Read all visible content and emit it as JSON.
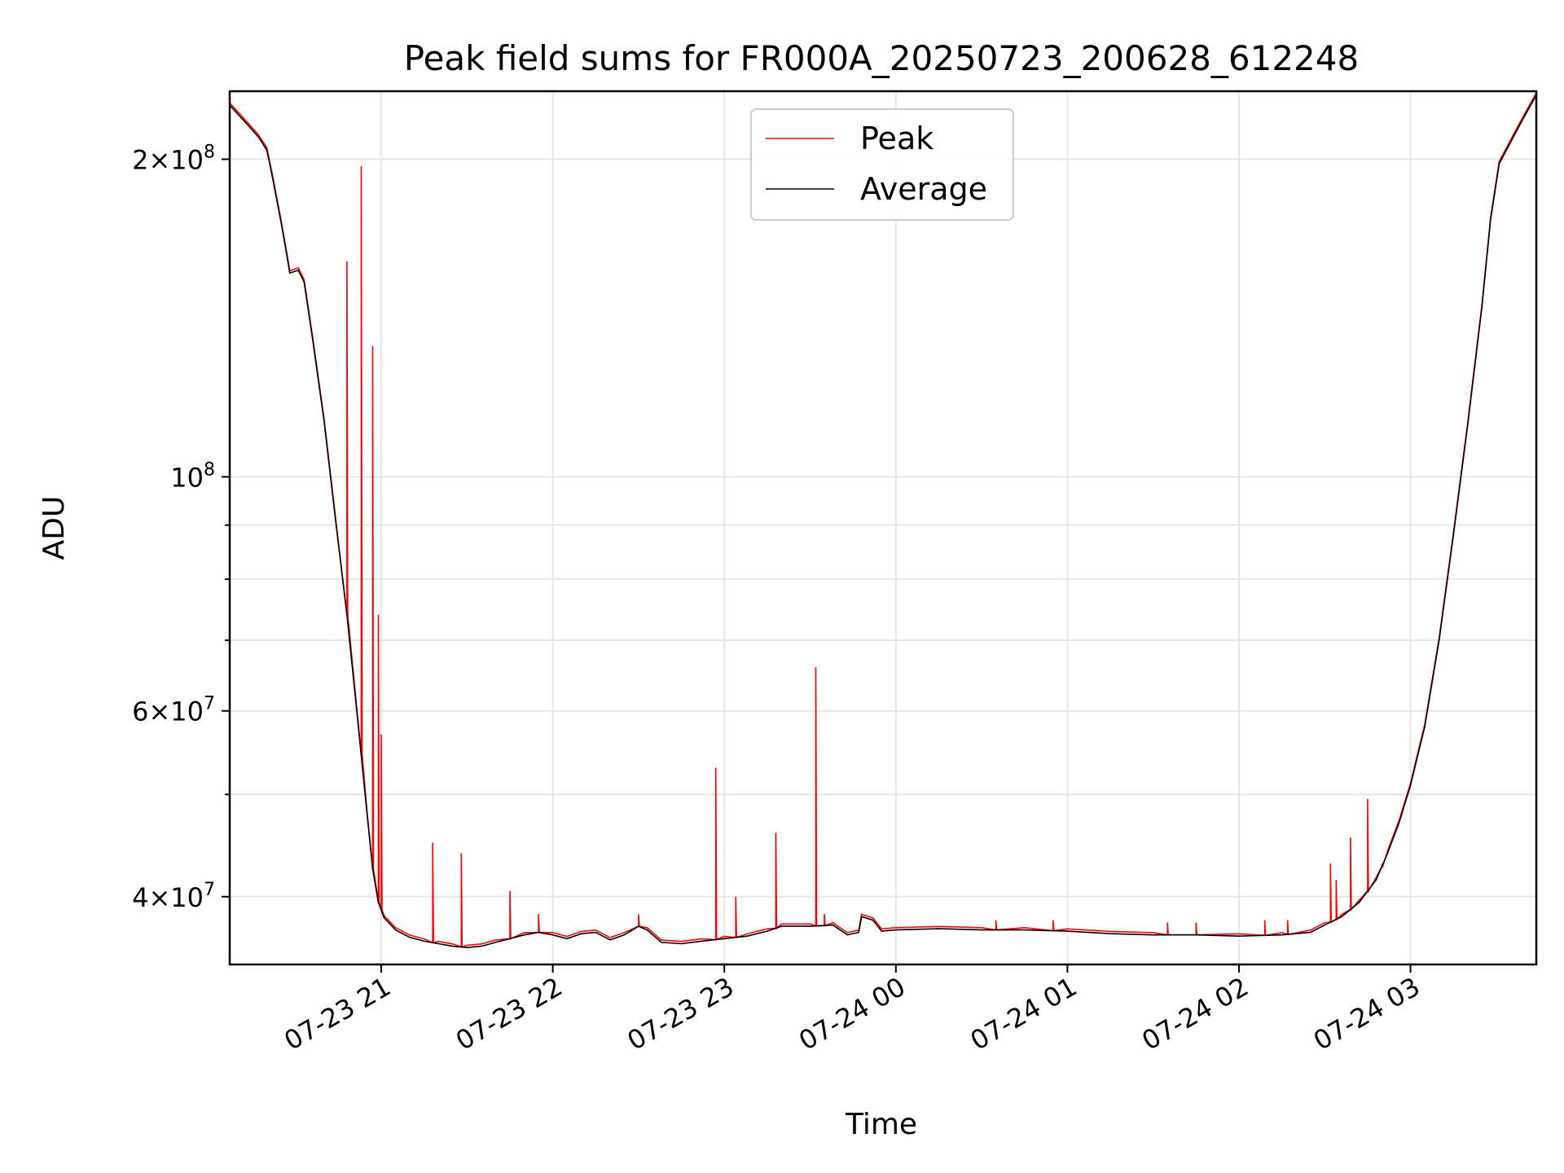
{
  "chart_data": {
    "type": "line",
    "title": "Peak field sums for FR000A_20250723_200628_612248",
    "xlabel": "Time",
    "ylabel": "ADU",
    "yscale": "log",
    "xlim": [
      "2025-07-23 20:07",
      "2025-07-24 03:44"
    ],
    "ylim": [
      34500000,
      232000000
    ],
    "grid": true,
    "legend_position": "upper-center",
    "x_ticks": [
      {
        "t": "2025-07-23 21:00",
        "label": "07-23 21"
      },
      {
        "t": "2025-07-23 22:00",
        "label": "07-23 22"
      },
      {
        "t": "2025-07-23 23:00",
        "label": "07-23 23"
      },
      {
        "t": "2025-07-24 00:00",
        "label": "07-24 00"
      },
      {
        "t": "2025-07-24 01:00",
        "label": "07-24 01"
      },
      {
        "t": "2025-07-24 02:00",
        "label": "07-24 02"
      },
      {
        "t": "2025-07-24 03:00",
        "label": "07-24 03"
      }
    ],
    "y_ticks_major": [
      {
        "value": 40000000,
        "mantissa": "4",
        "times": "×",
        "base": "10",
        "exp": "7"
      },
      {
        "value": 60000000,
        "mantissa": "6",
        "times": "×",
        "base": "10",
        "exp": "7"
      },
      {
        "value": 100000000,
        "mantissa": "",
        "times": "",
        "base": "10",
        "exp": "8"
      },
      {
        "value": 200000000,
        "mantissa": "2",
        "times": "×",
        "base": "10",
        "exp": "8"
      }
    ],
    "y_ticks_minor": [
      50000000,
      70000000,
      80000000,
      90000000
    ],
    "series": [
      {
        "name": "Average",
        "color": "#000000",
        "points": [
          [
            "2025-07-23 20:07",
            225000000
          ],
          [
            "2025-07-23 20:13",
            216000000
          ],
          [
            "2025-07-23 20:17",
            210000000
          ],
          [
            "2025-07-23 20:20",
            204000000
          ],
          [
            "2025-07-23 20:22",
            192000000
          ],
          [
            "2025-07-23 20:25",
            174000000
          ],
          [
            "2025-07-23 20:27",
            162000000
          ],
          [
            "2025-07-23 20:28",
            156000000
          ],
          [
            "2025-07-23 20:31",
            157000000
          ],
          [
            "2025-07-23 20:33",
            153000000
          ],
          [
            "2025-07-23 20:36",
            135000000
          ],
          [
            "2025-07-23 20:40",
            113000000
          ],
          [
            "2025-07-23 20:44",
            91000000
          ],
          [
            "2025-07-23 20:48",
            74000000
          ],
          [
            "2025-07-23 20:52",
            58000000
          ],
          [
            "2025-07-23 20:55",
            48000000
          ],
          [
            "2025-07-23 20:57",
            42500000
          ],
          [
            "2025-07-23 20:59",
            39500000
          ],
          [
            "2025-07-23 21:01",
            38200000
          ],
          [
            "2025-07-23 21:05",
            37200000
          ],
          [
            "2025-07-23 21:10",
            36600000
          ],
          [
            "2025-07-23 21:15",
            36300000
          ],
          [
            "2025-07-23 21:20",
            36100000
          ],
          [
            "2025-07-23 21:25",
            35900000
          ],
          [
            "2025-07-23 21:30",
            35800000
          ],
          [
            "2025-07-23 21:35",
            35900000
          ],
          [
            "2025-07-23 21:40",
            36200000
          ],
          [
            "2025-07-23 21:45",
            36500000
          ],
          [
            "2025-07-23 21:50",
            36800000
          ],
          [
            "2025-07-23 21:55",
            37000000
          ],
          [
            "2025-07-23 22:00",
            36800000
          ],
          [
            "2025-07-23 22:05",
            36500000
          ],
          [
            "2025-07-23 22:10",
            36900000
          ],
          [
            "2025-07-23 22:15",
            37000000
          ],
          [
            "2025-07-23 22:20",
            36400000
          ],
          [
            "2025-07-23 22:25",
            36800000
          ],
          [
            "2025-07-23 22:30",
            37500000
          ],
          [
            "2025-07-23 22:33",
            37200000
          ],
          [
            "2025-07-23 22:38",
            36200000
          ],
          [
            "2025-07-23 22:45",
            36100000
          ],
          [
            "2025-07-23 22:52",
            36300000
          ],
          [
            "2025-07-23 23:00",
            36500000
          ],
          [
            "2025-07-23 23:08",
            36700000
          ],
          [
            "2025-07-23 23:15",
            37100000
          ],
          [
            "2025-07-23 23:20",
            37500000
          ],
          [
            "2025-07-23 23:30",
            37500000
          ],
          [
            "2025-07-23 23:38",
            37600000
          ],
          [
            "2025-07-23 23:43",
            36800000
          ],
          [
            "2025-07-23 23:47",
            37000000
          ],
          [
            "2025-07-23 23:48",
            38300000
          ],
          [
            "2025-07-23 23:52",
            38000000
          ],
          [
            "2025-07-23 23:55",
            37100000
          ],
          [
            "2025-07-24 00:00",
            37200000
          ],
          [
            "2025-07-24 00:15",
            37300000
          ],
          [
            "2025-07-24 00:30",
            37200000
          ],
          [
            "2025-07-24 00:45",
            37200000
          ],
          [
            "2025-07-24 01:00",
            37100000
          ],
          [
            "2025-07-24 01:15",
            36900000
          ],
          [
            "2025-07-24 01:30",
            36800000
          ],
          [
            "2025-07-24 01:45",
            36800000
          ],
          [
            "2025-07-24 02:00",
            36700000
          ],
          [
            "2025-07-24 02:15",
            36800000
          ],
          [
            "2025-07-24 02:25",
            37000000
          ],
          [
            "2025-07-24 02:30",
            37600000
          ],
          [
            "2025-07-24 02:36",
            38300000
          ],
          [
            "2025-07-24 02:42",
            39500000
          ],
          [
            "2025-07-24 02:48",
            41500000
          ],
          [
            "2025-07-24 02:52",
            44000000
          ],
          [
            "2025-07-24 02:56",
            47000000
          ],
          [
            "2025-07-24 03:00",
            51000000
          ],
          [
            "2025-07-24 03:05",
            58000000
          ],
          [
            "2025-07-24 03:10",
            70000000
          ],
          [
            "2025-07-24 03:15",
            88000000
          ],
          [
            "2025-07-24 03:20",
            112000000
          ],
          [
            "2025-07-24 03:25",
            145000000
          ],
          [
            "2025-07-24 03:28",
            175000000
          ],
          [
            "2025-07-24 03:31",
            198000000
          ],
          [
            "2025-07-24 03:36",
            210000000
          ],
          [
            "2025-07-24 03:40",
            220000000
          ],
          [
            "2025-07-24 03:44",
            230000000
          ]
        ]
      },
      {
        "name": "Peak",
        "color": "#ff0000",
        "spikes": [
          [
            "2025-07-23 20:48",
            160000000
          ],
          [
            "2025-07-23 20:53",
            197000000
          ],
          [
            "2025-07-23 20:57",
            133000000
          ],
          [
            "2025-07-23 20:59",
            74000000
          ],
          [
            "2025-07-23 21:00",
            57000000
          ],
          [
            "2025-07-23 21:18",
            45000000
          ],
          [
            "2025-07-23 21:28",
            44000000
          ],
          [
            "2025-07-23 21:45",
            40500000
          ],
          [
            "2025-07-23 21:55",
            38500000
          ],
          [
            "2025-07-23 22:30",
            38500000
          ],
          [
            "2025-07-23 22:57",
            53000000
          ],
          [
            "2025-07-23 23:04",
            40000000
          ],
          [
            "2025-07-23 23:18",
            46000000
          ],
          [
            "2025-07-23 23:32",
            66000000
          ],
          [
            "2025-07-23 23:35",
            38500000
          ],
          [
            "2025-07-24 00:35",
            38000000
          ],
          [
            "2025-07-24 00:55",
            38000000
          ],
          [
            "2025-07-24 01:35",
            37800000
          ],
          [
            "2025-07-24 01:45",
            37800000
          ],
          [
            "2025-07-24 02:09",
            38000000
          ],
          [
            "2025-07-24 02:17",
            38000000
          ],
          [
            "2025-07-24 02:32",
            43000000
          ],
          [
            "2025-07-24 02:34",
            41500000
          ],
          [
            "2025-07-24 02:39",
            45500000
          ],
          [
            "2025-07-24 02:45",
            49500000
          ],
          [
            "2025-07-24 02:50",
            43000000
          ]
        ]
      }
    ]
  }
}
